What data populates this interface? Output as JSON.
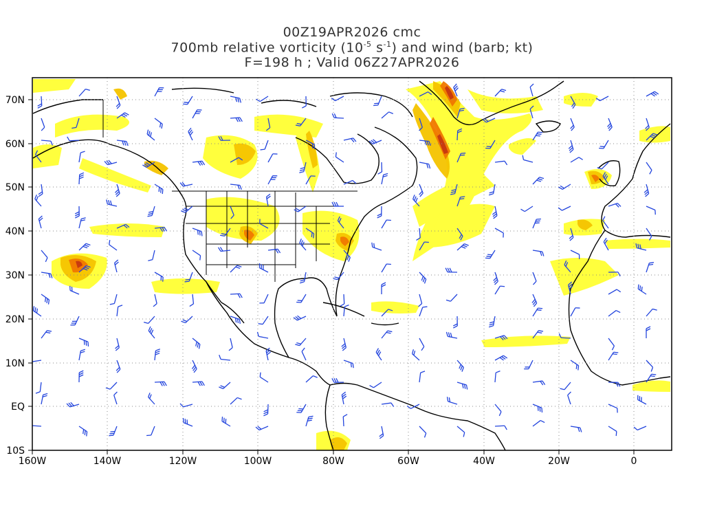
{
  "header": {
    "line1": "00Z19APR2026 cmc",
    "line2_prefix": "700mb relative vorticity (10",
    "line2_exp1": "-5",
    "line2_mid": " s",
    "line2_exp2": "-1",
    "line2_suffix": ") and wind (barb; kt)",
    "line3": "F=198 h ; Valid 06Z27APR2026"
  },
  "map": {
    "projection": "cylindrical equidistant",
    "lon_range": [
      -160,
      10
    ],
    "lat_range": [
      -10,
      75
    ],
    "gridlines": "dotted",
    "lat_labels": [
      "70N",
      "60N",
      "50N",
      "40N",
      "30N",
      "20N",
      "10N",
      "EQ",
      "10S"
    ],
    "lon_labels": [
      "160W",
      "140W",
      "120W",
      "100W",
      "80W",
      "60W",
      "40W",
      "20W",
      "0"
    ],
    "colors": {
      "vorticity_low": "#ffff33",
      "vorticity_mid": "#f5c400",
      "vorticity_high": "#f07800",
      "vorticity_max": "#d04000",
      "wind_barb": "#2244dd",
      "coastline": "#000000"
    }
  }
}
